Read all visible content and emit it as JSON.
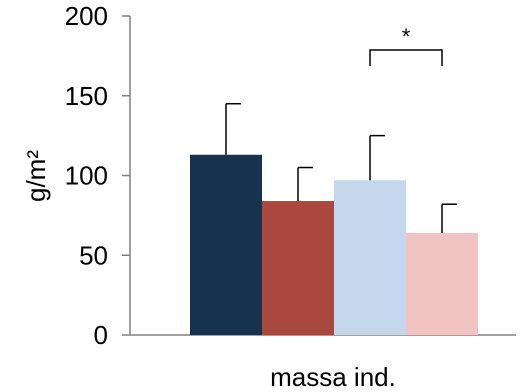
{
  "chart_data": {
    "type": "bar",
    "title": "",
    "xlabel": "massa ind.",
    "ylabel": "g/m²",
    "ylim": [
      0,
      200
    ],
    "yticks": [
      0,
      50,
      100,
      150,
      200
    ],
    "ytick_labels": [
      "0",
      "50",
      "100",
      "150",
      "200"
    ],
    "grid": false,
    "legend": "none",
    "categories": [
      "massa ind."
    ],
    "series": [
      {
        "values": [
          113
        ],
        "error": [
          32
        ],
        "color": "#17324f"
      },
      {
        "values": [
          84
        ],
        "error": [
          21
        ],
        "color": "#a9483f"
      },
      {
        "values": [
          97
        ],
        "error": [
          28
        ],
        "color": "#c5d7ea"
      },
      {
        "values": [
          64
        ],
        "error": [
          18
        ],
        "color": "#efc4c3"
      }
    ],
    "annotations": [
      {
        "text": "*",
        "between_series": [
          2,
          3
        ]
      }
    ]
  }
}
